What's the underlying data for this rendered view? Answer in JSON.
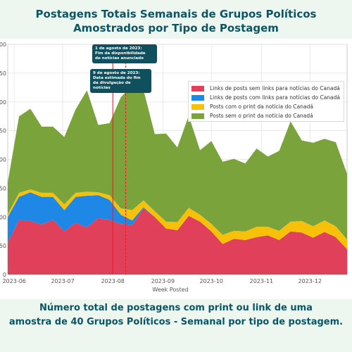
{
  "title_line1": "Postagens Totais Semanais de Grupos Políticos",
  "title_line2": "Amostrados por Tipo de Postagem",
  "caption_line1": "Número total de postagens com print ou link de uma",
  "caption_line2": "amostra de 40 Grupos Políticos - Semanal por tipo de postagem.",
  "annotations": [
    {
      "lines": [
        "1 de agosto de 2023:",
        "Fim da disponibilidade",
        "de notícias anunciado"
      ]
    },
    {
      "lines": [
        "9 de agosto de 2023:",
        "Data estimada do fim",
        "da divulgação de notícias"
      ]
    }
  ],
  "chart_data": {
    "type": "area",
    "title": "",
    "xlabel": "Week Posted",
    "ylabel": "",
    "x_ticks": [
      "2023-06",
      "2023-07",
      "2023-08",
      "2023-09",
      "2023-10",
      "2023-11",
      "2023-12"
    ],
    "y_ticks": [
      "0",
      "50",
      "00",
      "50",
      "00",
      "50",
      "00",
      "50",
      "00"
    ],
    "ylim": [
      0,
      400
    ],
    "grid": true,
    "legend_position": "top-right",
    "x": [
      "2023-05-28",
      "2023-06-04",
      "2023-06-11",
      "2023-06-18",
      "2023-06-25",
      "2023-07-02",
      "2023-07-09",
      "2023-07-16",
      "2023-07-23",
      "2023-07-30",
      "2023-08-06",
      "2023-08-13",
      "2023-08-20",
      "2023-08-27",
      "2023-09-03",
      "2023-09-10",
      "2023-09-17",
      "2023-09-24",
      "2023-10-01",
      "2023-10-08",
      "2023-10-15",
      "2023-10-22",
      "2023-10-29",
      "2023-11-05",
      "2023-11-12",
      "2023-11-19",
      "2023-11-26",
      "2023-12-03",
      "2023-12-10",
      "2023-12-17",
      "2023-12-24"
    ],
    "series": [
      {
        "name": "Links de posts sem links para notícias do Canadá",
        "color": "#e0405a",
        "values": [
          55,
          95,
          93,
          87,
          95,
          75,
          90,
          82,
          98,
          95,
          88,
          86,
          115,
          100,
          80,
          77,
          102,
          92,
          75,
          53,
          62,
          60,
          65,
          68,
          60,
          75,
          73,
          64,
          74,
          65,
          44
        ]
      },
      {
        "name": "Links de posts com links para notícias do Canadá",
        "color": "#1f87e5",
        "values": [
          45,
          40,
          50,
          48,
          40,
          37,
          45,
          55,
          40,
          35,
          16,
          8,
          2,
          0,
          0,
          0,
          0,
          0,
          0,
          0,
          0,
          0,
          0,
          0,
          0,
          0,
          0,
          0,
          0,
          0,
          0
        ]
      },
      {
        "name": "Posts com o print da notícia do Canadá",
        "color": "#f7c10a",
        "values": [
          5,
          7,
          5,
          7,
          7,
          10,
          7,
          7,
          5,
          8,
          11,
          18,
          12,
          10,
          12,
          14,
          14,
          12,
          13,
          16,
          14,
          15,
          18,
          15,
          16,
          17,
          20,
          20,
          20,
          19,
          17
        ]
      },
      {
        "name": "Posts sem o print da notícia do Canadá",
        "color": "#7aa33c",
        "values": [
          55,
          133,
          140,
          115,
          115,
          117,
          145,
          176,
          117,
          125,
          193,
          217,
          192,
          134,
          153,
          130,
          160,
          112,
          144,
          127,
          125,
          118,
          136,
          122,
          139,
          174,
          140,
          145,
          142,
          146,
          114
        ]
      }
    ]
  }
}
